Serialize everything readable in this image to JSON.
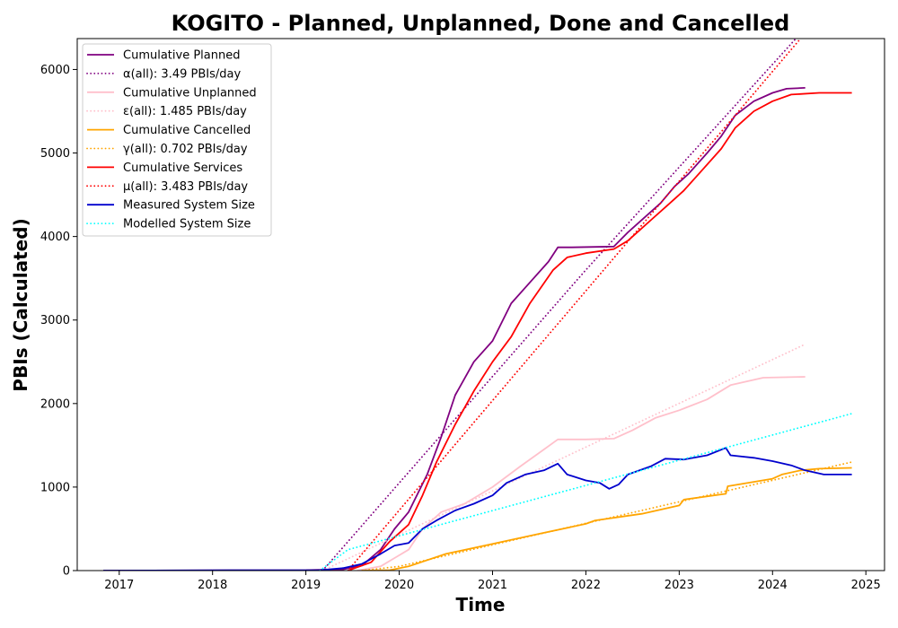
{
  "chart_data": {
    "type": "line",
    "title": "KOGITO - Planned, Unplanned, Done  and Cancelled",
    "xlabel": "Time",
    "ylabel": "PBIs (Calculated)",
    "xlim": [
      2016.55,
      2025.2
    ],
    "ylim": [
      0,
      6370
    ],
    "x_ticks": [
      2017,
      2018,
      2019,
      2020,
      2021,
      2022,
      2023,
      2024,
      2025
    ],
    "x_tick_labels": [
      "2017",
      "2018",
      "2019",
      "2020",
      "2021",
      "2022",
      "2023",
      "2024",
      "2025"
    ],
    "y_ticks": [
      0,
      1000,
      2000,
      3000,
      4000,
      5000,
      6000
    ],
    "y_tick_labels": [
      "0",
      "1000",
      "2000",
      "3000",
      "4000",
      "5000",
      "6000"
    ],
    "grid": false,
    "legend_position": "top-left",
    "series": [
      {
        "name": "Cumulative Planned",
        "style": "solid",
        "color": "#800080",
        "points": [
          [
            2016.83,
            0
          ],
          [
            2019.0,
            5
          ],
          [
            2019.15,
            10
          ],
          [
            2019.4,
            15
          ],
          [
            2019.6,
            60
          ],
          [
            2019.8,
            250
          ],
          [
            2019.95,
            500
          ],
          [
            2020.1,
            700
          ],
          [
            2020.3,
            1150
          ],
          [
            2020.45,
            1600
          ],
          [
            2020.6,
            2100
          ],
          [
            2020.8,
            2500
          ],
          [
            2021.0,
            2750
          ],
          [
            2021.2,
            3200
          ],
          [
            2021.4,
            3450
          ],
          [
            2021.6,
            3700
          ],
          [
            2021.7,
            3870
          ],
          [
            2021.85,
            3870
          ],
          [
            2022.3,
            3880
          ],
          [
            2022.45,
            4050
          ],
          [
            2022.8,
            4400
          ],
          [
            2022.95,
            4600
          ],
          [
            2023.1,
            4750
          ],
          [
            2023.3,
            5000
          ],
          [
            2023.45,
            5200
          ],
          [
            2023.6,
            5450
          ],
          [
            2023.8,
            5620
          ],
          [
            2024.0,
            5720
          ],
          [
            2024.15,
            5770
          ],
          [
            2024.35,
            5780
          ]
        ]
      },
      {
        "name": "α(all): 3.49 PBIs/day",
        "style": "dotted",
        "color": "#800080",
        "points": [
          [
            2019.18,
            0
          ],
          [
            2020.0,
            1050
          ],
          [
            2022.0,
            3600
          ],
          [
            2024.25,
            6370
          ]
        ]
      },
      {
        "name": "Cumulative Unplanned",
        "style": "solid",
        "color": "#ffc0cb",
        "points": [
          [
            2019.55,
            0
          ],
          [
            2019.8,
            50
          ],
          [
            2019.95,
            150
          ],
          [
            2020.1,
            250
          ],
          [
            2020.25,
            500
          ],
          [
            2020.45,
            700
          ],
          [
            2020.7,
            800
          ],
          [
            2021.0,
            1000
          ],
          [
            2021.3,
            1250
          ],
          [
            2021.55,
            1450
          ],
          [
            2021.7,
            1570
          ],
          [
            2022.0,
            1570
          ],
          [
            2022.3,
            1580
          ],
          [
            2022.5,
            1680
          ],
          [
            2022.75,
            1830
          ],
          [
            2023.0,
            1920
          ],
          [
            2023.3,
            2050
          ],
          [
            2023.55,
            2220
          ],
          [
            2023.9,
            2310
          ],
          [
            2024.35,
            2320
          ]
        ]
      },
      {
        "name": "ε(all): 1.485 PBIs/day",
        "style": "dotted",
        "color": "#ffc0cb",
        "points": [
          [
            2019.18,
            0
          ],
          [
            2024.35,
            2710
          ]
        ]
      },
      {
        "name": "Cumulative Cancelled",
        "style": "solid",
        "color": "#ffa500",
        "points": [
          [
            2019.6,
            0
          ],
          [
            2019.9,
            5
          ],
          [
            2020.1,
            50
          ],
          [
            2020.5,
            200
          ],
          [
            2021.0,
            320
          ],
          [
            2021.5,
            440
          ],
          [
            2022.0,
            560
          ],
          [
            2022.1,
            600
          ],
          [
            2022.6,
            680
          ],
          [
            2023.0,
            780
          ],
          [
            2023.05,
            850
          ],
          [
            2023.5,
            920
          ],
          [
            2023.52,
            1010
          ],
          [
            2024.0,
            1100
          ],
          [
            2024.1,
            1150
          ],
          [
            2024.3,
            1200
          ],
          [
            2024.5,
            1220
          ],
          [
            2024.85,
            1230
          ]
        ]
      },
      {
        "name": "γ(all): 0.702 PBIs/day",
        "style": "dotted",
        "color": "#ffa500",
        "points": [
          [
            2019.6,
            0
          ],
          [
            2020.0,
            50
          ],
          [
            2024.85,
            1300
          ]
        ]
      },
      {
        "name": "Cumulative Services",
        "style": "solid",
        "color": "#ff0000",
        "points": [
          [
            2019.45,
            0
          ],
          [
            2019.7,
            100
          ],
          [
            2019.9,
            350
          ],
          [
            2020.1,
            550
          ],
          [
            2020.25,
            900
          ],
          [
            2020.4,
            1300
          ],
          [
            2020.6,
            1750
          ],
          [
            2020.8,
            2150
          ],
          [
            2021.0,
            2500
          ],
          [
            2021.2,
            2800
          ],
          [
            2021.4,
            3200
          ],
          [
            2021.65,
            3600
          ],
          [
            2021.8,
            3750
          ],
          [
            2022.0,
            3800
          ],
          [
            2022.3,
            3850
          ],
          [
            2022.45,
            3950
          ],
          [
            2022.7,
            4200
          ],
          [
            2022.9,
            4400
          ],
          [
            2023.05,
            4550
          ],
          [
            2023.25,
            4800
          ],
          [
            2023.45,
            5050
          ],
          [
            2023.6,
            5300
          ],
          [
            2023.8,
            5500
          ],
          [
            2024.0,
            5620
          ],
          [
            2024.2,
            5700
          ],
          [
            2024.5,
            5720
          ],
          [
            2024.85,
            5720
          ]
        ]
      },
      {
        "name": "μ(all): 3.483 PBIs/day",
        "style": "dotted",
        "color": "#ff0000",
        "points": [
          [
            2019.45,
            0
          ],
          [
            2024.3,
            6370
          ]
        ]
      },
      {
        "name": "Measured System Size",
        "style": "solid",
        "color": "#0000cd",
        "points": [
          [
            2016.83,
            0
          ],
          [
            2019.15,
            5
          ],
          [
            2019.4,
            30
          ],
          [
            2019.6,
            80
          ],
          [
            2019.8,
            200
          ],
          [
            2019.95,
            300
          ],
          [
            2020.1,
            330
          ],
          [
            2020.25,
            500
          ],
          [
            2020.4,
            600
          ],
          [
            2020.6,
            720
          ],
          [
            2020.8,
            800
          ],
          [
            2021.0,
            900
          ],
          [
            2021.15,
            1050
          ],
          [
            2021.35,
            1150
          ],
          [
            2021.55,
            1200
          ],
          [
            2021.7,
            1280
          ],
          [
            2021.8,
            1150
          ],
          [
            2022.0,
            1080
          ],
          [
            2022.15,
            1050
          ],
          [
            2022.25,
            980
          ],
          [
            2022.35,
            1030
          ],
          [
            2022.45,
            1150
          ],
          [
            2022.7,
            1250
          ],
          [
            2022.85,
            1340
          ],
          [
            2023.05,
            1330
          ],
          [
            2023.3,
            1380
          ],
          [
            2023.5,
            1470
          ],
          [
            2023.55,
            1380
          ],
          [
            2023.8,
            1350
          ],
          [
            2024.0,
            1310
          ],
          [
            2024.2,
            1260
          ],
          [
            2024.35,
            1200
          ],
          [
            2024.55,
            1150
          ],
          [
            2024.85,
            1150
          ]
        ]
      },
      {
        "name": "Modelled System Size",
        "style": "dotted",
        "color": "#00ffff",
        "points": [
          [
            2019.15,
            0
          ],
          [
            2019.45,
            250
          ],
          [
            2024.85,
            1880
          ]
        ]
      }
    ]
  },
  "legend": {
    "items": [
      {
        "label": "Cumulative Planned",
        "color": "#800080",
        "style": "solid"
      },
      {
        "label": "α(all): 3.49 PBIs/day",
        "color": "#800080",
        "style": "dotted"
      },
      {
        "label": "Cumulative Unplanned",
        "color": "#ffc0cb",
        "style": "solid"
      },
      {
        "label": "ε(all): 1.485 PBIs/day",
        "color": "#ffc0cb",
        "style": "dotted"
      },
      {
        "label": "Cumulative Cancelled",
        "color": "#ffa500",
        "style": "solid"
      },
      {
        "label": "γ(all): 0.702 PBIs/day",
        "color": "#ffa500",
        "style": "dotted"
      },
      {
        "label": "Cumulative Services",
        "color": "#ff0000",
        "style": "solid"
      },
      {
        "label": "μ(all): 3.483 PBIs/day",
        "color": "#ff0000",
        "style": "dotted"
      },
      {
        "label": "Measured System Size",
        "color": "#0000cd",
        "style": "solid"
      },
      {
        "label": "Modelled System Size",
        "color": "#00ffff",
        "style": "dotted"
      }
    ]
  }
}
